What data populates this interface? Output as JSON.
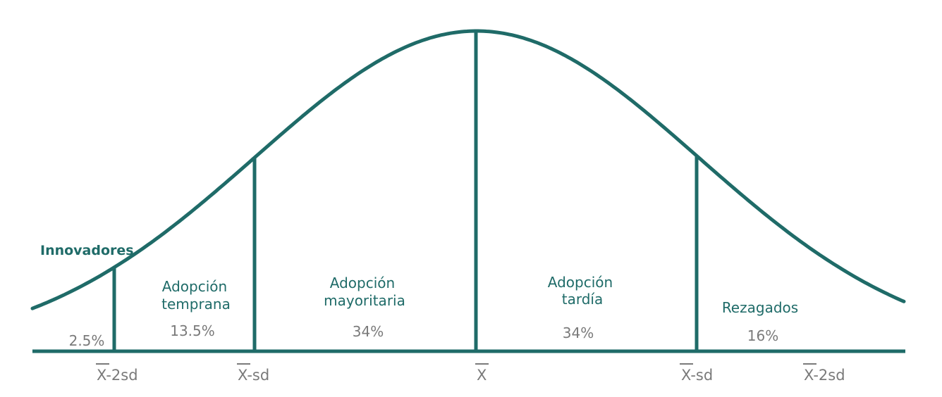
{
  "colors": {
    "line": "#1f6b68",
    "label": "#1f6b68",
    "percent": "#7a7a7a",
    "axis_label": "#7a7a7a"
  },
  "segments": [
    {
      "name": "Innovadores",
      "line1": "Innovadores",
      "line2": "",
      "percent": "2.5%"
    },
    {
      "name": "Adopción temprana",
      "line1": "Adopción",
      "line2": "temprana",
      "percent": "13.5%"
    },
    {
      "name": "Adopción mayoritaria",
      "line1": "Adopción",
      "line2": "mayoritaria",
      "percent": "34%"
    },
    {
      "name": "Adopción tardía",
      "line1": "Adopción",
      "line2": "tardía",
      "percent": "34%"
    },
    {
      "name": "Rezagados",
      "line1": "Rezagados",
      "line2": "",
      "percent": "16%"
    }
  ],
  "axis_labels": [
    {
      "bar": "X",
      "rest": "-2sd"
    },
    {
      "bar": "X",
      "rest": "-sd"
    },
    {
      "bar": "X",
      "rest": ""
    },
    {
      "bar": "X",
      "rest": "-sd"
    },
    {
      "bar": "X",
      "rest": "-2sd"
    }
  ]
}
